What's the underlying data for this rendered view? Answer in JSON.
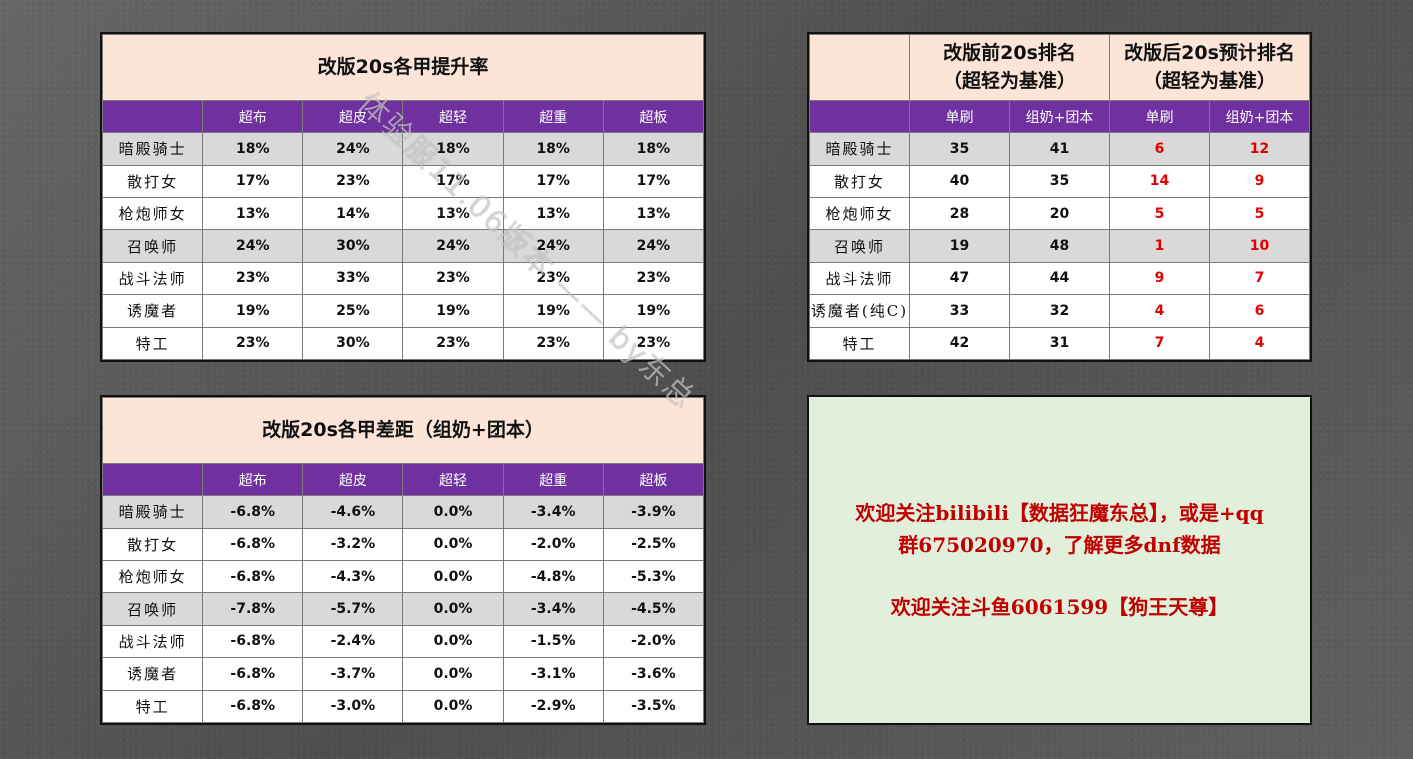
{
  "boost_table": {
    "title": "改版20s各甲提升率",
    "headers": [
      "超布",
      "超皮",
      "超轻",
      "超重",
      "超板"
    ],
    "rows": [
      {
        "name": "暗殿骑士",
        "values": [
          "18%",
          "24%",
          "18%",
          "18%",
          "18%"
        ]
      },
      {
        "name": "散打女",
        "values": [
          "17%",
          "23%",
          "17%",
          "17%",
          "17%"
        ]
      },
      {
        "name": "枪炮师女",
        "values": [
          "13%",
          "14%",
          "13%",
          "13%",
          "13%"
        ]
      },
      {
        "name": "召唤师",
        "values": [
          "24%",
          "30%",
          "24%",
          "24%",
          "24%"
        ]
      },
      {
        "name": "战斗法师",
        "values": [
          "23%",
          "33%",
          "23%",
          "23%",
          "23%"
        ]
      },
      {
        "name": "诱魔者",
        "values": [
          "19%",
          "25%",
          "19%",
          "19%",
          "19%"
        ]
      },
      {
        "name": "特工",
        "values": [
          "23%",
          "30%",
          "23%",
          "23%",
          "23%"
        ]
      }
    ]
  },
  "rank_table": {
    "title_before_1": "改版前20s排名",
    "title_before_2": "（超轻为基准）",
    "title_after_1": "改版后20s预计排名",
    "title_after_2": "（超轻为基准）",
    "headers": [
      "单刷",
      "组奶+团本",
      "单刷",
      "组奶+团本"
    ],
    "rows": [
      {
        "name": "暗殿骑士",
        "values": [
          "35",
          "41",
          "6",
          "12"
        ]
      },
      {
        "name": "散打女",
        "values": [
          "40",
          "35",
          "14",
          "9"
        ]
      },
      {
        "name": "枪炮师女",
        "values": [
          "28",
          "20",
          "5",
          "5"
        ]
      },
      {
        "name": "召唤师",
        "values": [
          "19",
          "48",
          "1",
          "10"
        ]
      },
      {
        "name": "战斗法师",
        "values": [
          "47",
          "44",
          "9",
          "7"
        ]
      },
      {
        "name": "诱魔者(纯C)",
        "values": [
          "33",
          "32",
          "4",
          "6"
        ]
      },
      {
        "name": "特工",
        "values": [
          "42",
          "31",
          "7",
          "4"
        ]
      }
    ]
  },
  "gap_table": {
    "title": "改版20s各甲差距（组奶+团本）",
    "headers": [
      "超布",
      "超皮",
      "超轻",
      "超重",
      "超板"
    ],
    "rows": [
      {
        "name": "暗殿骑士",
        "values": [
          "-6.8%",
          "-4.6%",
          "0.0%",
          "-3.4%",
          "-3.9%"
        ]
      },
      {
        "name": "散打女",
        "values": [
          "-6.8%",
          "-3.2%",
          "0.0%",
          "-2.0%",
          "-2.5%"
        ]
      },
      {
        "name": "枪炮师女",
        "values": [
          "-6.8%",
          "-4.3%",
          "0.0%",
          "-4.8%",
          "-5.3%"
        ]
      },
      {
        "name": "召唤师",
        "values": [
          "-7.8%",
          "-5.7%",
          "0.0%",
          "-3.4%",
          "-4.5%"
        ]
      },
      {
        "name": "战斗法师",
        "values": [
          "-6.8%",
          "-2.4%",
          "0.0%",
          "-1.5%",
          "-2.0%"
        ]
      },
      {
        "name": "诱魔者",
        "values": [
          "-6.8%",
          "-3.7%",
          "0.0%",
          "-3.1%",
          "-3.6%"
        ]
      },
      {
        "name": "特工",
        "values": [
          "-6.8%",
          "-3.0%",
          "0.0%",
          "-2.9%",
          "-3.5%"
        ]
      }
    ]
  },
  "info": {
    "line1": "欢迎关注bilibili【数据狂魔东总】，或是+qq",
    "line2": "群675020970，了解更多dnf数据",
    "line3": "欢迎关注斗鱼6061599【狗王天尊】"
  },
  "watermark": "体验服11.06版本 —— by东总",
  "colors": {
    "header_purple": "#7030a0",
    "title_peach": "#fce4d6",
    "row_gray": "#d9d9d9",
    "rank_red": "#e00000",
    "info_bg": "#e2efda",
    "info_text": "#c00000"
  }
}
